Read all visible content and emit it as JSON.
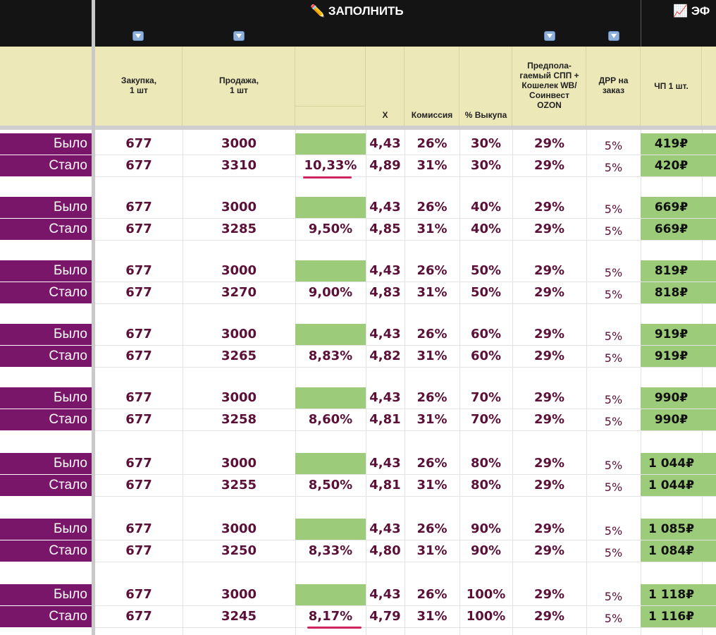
{
  "banner": {
    "fill_title": "✏️ ЗАПОЛНИТЬ",
    "eff_title": "📈 ЭФ"
  },
  "arrow_icons": [
    "down-arrow-icon",
    "down-arrow-icon",
    "down-arrow-icon",
    "down-arrow-icon"
  ],
  "columns": {
    "purchase": "Закупка,\n1 шт",
    "sale": "Продажа,\n1 шт",
    "x": "Х",
    "commission": "Комиссия",
    "buyout": "% Выкупа",
    "spp": "Предпола-\nгаемый СПП +\nКошелек WB/\nСоинвест\nOZON",
    "drr": "ДРР на\nзаказ",
    "profit": "ЧП 1 шт."
  },
  "colors": {
    "label_bg": "#7a1669",
    "green": "#9ccb7a",
    "header_bg": "#ece8b8",
    "accent_line": "#d0245e"
  },
  "rows": [
    {
      "label": "Было",
      "purchase": "677",
      "sale": "3000",
      "pct": "",
      "x": "4,43",
      "commission": "26%",
      "buyout": "30%",
      "spp": "29%",
      "drr": "5%",
      "profit": "419₽"
    },
    {
      "label": "Стало",
      "purchase": "677",
      "sale": "3310",
      "pct": "10,33%",
      "x": "4,89",
      "commission": "31%",
      "buyout": "30%",
      "spp": "29%",
      "drr": "5%",
      "profit": "420₽"
    },
    {
      "label": "Было",
      "purchase": "677",
      "sale": "3000",
      "pct": "",
      "x": "4,43",
      "commission": "26%",
      "buyout": "40%",
      "spp": "29%",
      "drr": "5%",
      "profit": "669₽"
    },
    {
      "label": "Стало",
      "purchase": "677",
      "sale": "3285",
      "pct": "9,50%",
      "x": "4,85",
      "commission": "31%",
      "buyout": "40%",
      "spp": "29%",
      "drr": "5%",
      "profit": "669₽"
    },
    {
      "label": "Было",
      "purchase": "677",
      "sale": "3000",
      "pct": "",
      "x": "4,43",
      "commission": "26%",
      "buyout": "50%",
      "spp": "29%",
      "drr": "5%",
      "profit": "819₽"
    },
    {
      "label": "Стало",
      "purchase": "677",
      "sale": "3270",
      "pct": "9,00%",
      "x": "4,83",
      "commission": "31%",
      "buyout": "50%",
      "spp": "29%",
      "drr": "5%",
      "profit": "818₽"
    },
    {
      "label": "Было",
      "purchase": "677",
      "sale": "3000",
      "pct": "",
      "x": "4,43",
      "commission": "26%",
      "buyout": "60%",
      "spp": "29%",
      "drr": "5%",
      "profit": "919₽"
    },
    {
      "label": "Стало",
      "purchase": "677",
      "sale": "3265",
      "pct": "8,83%",
      "x": "4,82",
      "commission": "31%",
      "buyout": "60%",
      "spp": "29%",
      "drr": "5%",
      "profit": "919₽"
    },
    {
      "label": "Было",
      "purchase": "677",
      "sale": "3000",
      "pct": "",
      "x": "4,43",
      "commission": "26%",
      "buyout": "70%",
      "spp": "29%",
      "drr": "5%",
      "profit": "990₽"
    },
    {
      "label": "Стало",
      "purchase": "677",
      "sale": "3258",
      "pct": "8,60%",
      "x": "4,81",
      "commission": "31%",
      "buyout": "70%",
      "spp": "29%",
      "drr": "5%",
      "profit": "990₽"
    },
    {
      "label": "Было",
      "purchase": "677",
      "sale": "3000",
      "pct": "",
      "x": "4,43",
      "commission": "26%",
      "buyout": "80%",
      "spp": "29%",
      "drr": "5%",
      "profit": "1 044₽"
    },
    {
      "label": "Стало",
      "purchase": "677",
      "sale": "3255",
      "pct": "8,50%",
      "x": "4,81",
      "commission": "31%",
      "buyout": "80%",
      "spp": "29%",
      "drr": "5%",
      "profit": "1 044₽"
    },
    {
      "label": "Было",
      "purchase": "677",
      "sale": "3000",
      "pct": "",
      "x": "4,43",
      "commission": "26%",
      "buyout": "90%",
      "spp": "29%",
      "drr": "5%",
      "profit": "1 085₽"
    },
    {
      "label": "Стало",
      "purchase": "677",
      "sale": "3250",
      "pct": "8,33%",
      "x": "4,80",
      "commission": "31%",
      "buyout": "90%",
      "spp": "29%",
      "drr": "5%",
      "profit": "1 084₽"
    },
    {
      "label": "Было",
      "purchase": "677",
      "sale": "3000",
      "pct": "",
      "x": "4,43",
      "commission": "26%",
      "buyout": "100%",
      "spp": "29%",
      "drr": "5%",
      "profit": "1 118₽"
    },
    {
      "label": "Стало",
      "purchase": "677",
      "sale": "3245",
      "pct": "8,17%",
      "x": "4,79",
      "commission": "31%",
      "buyout": "100%",
      "spp": "29%",
      "drr": "5%",
      "profit": "1 116₽"
    }
  ]
}
